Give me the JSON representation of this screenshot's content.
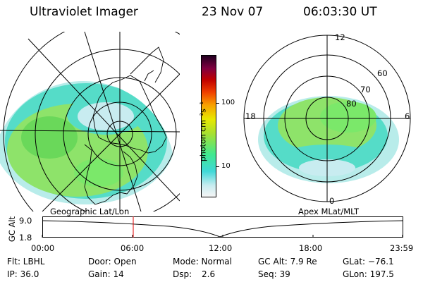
{
  "header": {
    "instrument": "Ultraviolet Imager",
    "date": "23 Nov 07",
    "time": "06:03:30 UT"
  },
  "left_map": {
    "label": "Geographic Lat/Lon"
  },
  "right_map": {
    "label": "Apex MLat/MLT",
    "mlt_labels": {
      "top": "12",
      "left": "18",
      "right": "6",
      "bottom": "0"
    },
    "lat_labels": [
      "60",
      "70",
      "80"
    ]
  },
  "colorbar": {
    "unit_label": "photon cm⁻²s⁻¹",
    "ticks": [
      "100",
      "10"
    ],
    "scale": "log",
    "colors": [
      "#f5f5f5",
      "#c8ecf0",
      "#40d8d8",
      "#40e890",
      "#a8e030",
      "#e8e800",
      "#f8a000",
      "#f04000",
      "#c00000",
      "#800040",
      "#200020"
    ]
  },
  "altitude_plot": {
    "ylabel": "GC Alt",
    "yticks": [
      "9.0",
      "1.8"
    ],
    "xticks": [
      "00:00",
      "06:00",
      "12:00",
      "18:00",
      "23:59"
    ],
    "marker_time": "06:03:30",
    "marker_color": "#e00000"
  },
  "info": {
    "row1": {
      "flt": "Flt: LBHL",
      "door": "Door: Open",
      "mode": "Mode: Normal",
      "gcalt": "GC Alt: 7.9 Re",
      "glat": "GLat: −76.1"
    },
    "row2": {
      "ip": "IP: 36.0",
      "gain": "Gain: 14",
      "dsp_label": "Dsp:",
      "dsp_value": "2.6",
      "seq": "Seq: 39",
      "glon": "GLon: 197.5"
    }
  }
}
